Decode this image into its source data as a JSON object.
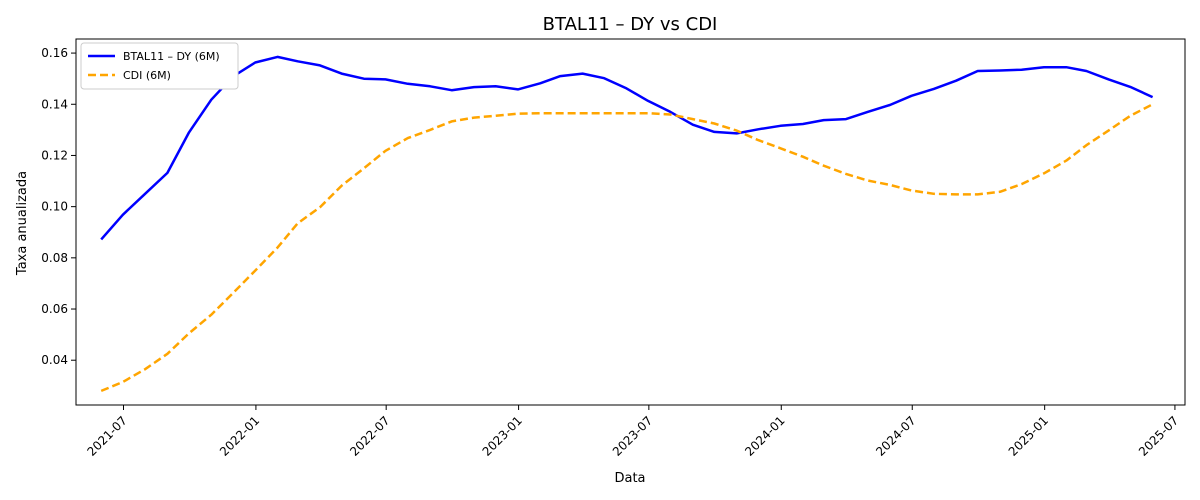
{
  "chart_data": {
    "type": "line",
    "title": "BTAL11 – DY vs CDI",
    "xlabel": "Data",
    "ylabel": "Taxa anualizada",
    "xlim": [
      "2021-04-26",
      "2025-07-15"
    ],
    "ylim": [
      0.0225,
      0.1655
    ],
    "x_ticks": [
      "2021-07",
      "2022-01",
      "2022-07",
      "2023-01",
      "2023-07",
      "2024-01",
      "2024-07",
      "2025-01",
      "2025-07"
    ],
    "y_ticks": [
      0.04,
      0.06,
      0.08,
      0.1,
      0.12,
      0.14,
      0.16
    ],
    "y_tick_labels": [
      "0.04",
      "0.06",
      "0.08",
      "0.10",
      "0.12",
      "0.14",
      "0.16"
    ],
    "grid": false,
    "legend_position": "top-left",
    "x": [
      "2021-05-31",
      "2021-06-30",
      "2021-07-31",
      "2021-08-31",
      "2021-09-30",
      "2021-10-31",
      "2021-11-30",
      "2021-12-31",
      "2022-01-31",
      "2022-02-28",
      "2022-03-31",
      "2022-04-30",
      "2022-05-31",
      "2022-06-30",
      "2022-07-31",
      "2022-08-31",
      "2022-09-30",
      "2022-10-31",
      "2022-11-30",
      "2022-12-31",
      "2023-01-31",
      "2023-02-28",
      "2023-03-31",
      "2023-04-30",
      "2023-05-31",
      "2023-06-30",
      "2023-07-31",
      "2023-08-31",
      "2023-09-30",
      "2023-10-31",
      "2023-11-30",
      "2023-12-31",
      "2024-01-31",
      "2024-02-29",
      "2024-03-31",
      "2024-04-30",
      "2024-05-31",
      "2024-06-30",
      "2024-07-31",
      "2024-08-31",
      "2024-09-30",
      "2024-10-31",
      "2024-11-30",
      "2024-12-31",
      "2025-01-31",
      "2025-02-28",
      "2025-03-31",
      "2025-04-30",
      "2025-05-31"
    ],
    "series": [
      {
        "name": "BTAL11 – DY (6M)",
        "color": "#0000ff",
        "style": "solid",
        "values": [
          0.0872,
          0.0968,
          0.105,
          0.1132,
          0.129,
          0.1418,
          0.1508,
          0.1563,
          0.1585,
          0.1568,
          0.1552,
          0.152,
          0.15,
          0.1497,
          0.148,
          0.147,
          0.1455,
          0.1467,
          0.147,
          0.1458,
          0.1482,
          0.151,
          0.152,
          0.1502,
          0.1462,
          0.1413,
          0.137,
          0.132,
          0.1292,
          0.1286,
          0.1302,
          0.1316,
          0.1323,
          0.1338,
          0.1342,
          0.137,
          0.1397,
          0.1433,
          0.146,
          0.1492,
          0.153,
          0.1532,
          0.1535,
          0.1545,
          0.1545,
          0.153,
          0.1497,
          0.1468,
          0.1428
        ]
      },
      {
        "name": "CDI (6M)",
        "color": "#ffa500",
        "style": "dashed",
        "values": [
          0.028,
          0.0315,
          0.0365,
          0.0425,
          0.0505,
          0.0578,
          0.0662,
          0.075,
          0.084,
          0.0935,
          0.0998,
          0.1082,
          0.115,
          0.1218,
          0.1268,
          0.13,
          0.1333,
          0.1348,
          0.1355,
          0.1363,
          0.1365,
          0.1365,
          0.1365,
          0.1365,
          0.1365,
          0.1365,
          0.136,
          0.1342,
          0.1325,
          0.1297,
          0.126,
          0.1228,
          0.1195,
          0.116,
          0.1128,
          0.1102,
          0.1085,
          0.1063,
          0.105,
          0.1048,
          0.1048,
          0.1058,
          0.1088,
          0.113,
          0.118,
          0.124,
          0.1298,
          0.1355,
          0.14
        ]
      }
    ]
  }
}
